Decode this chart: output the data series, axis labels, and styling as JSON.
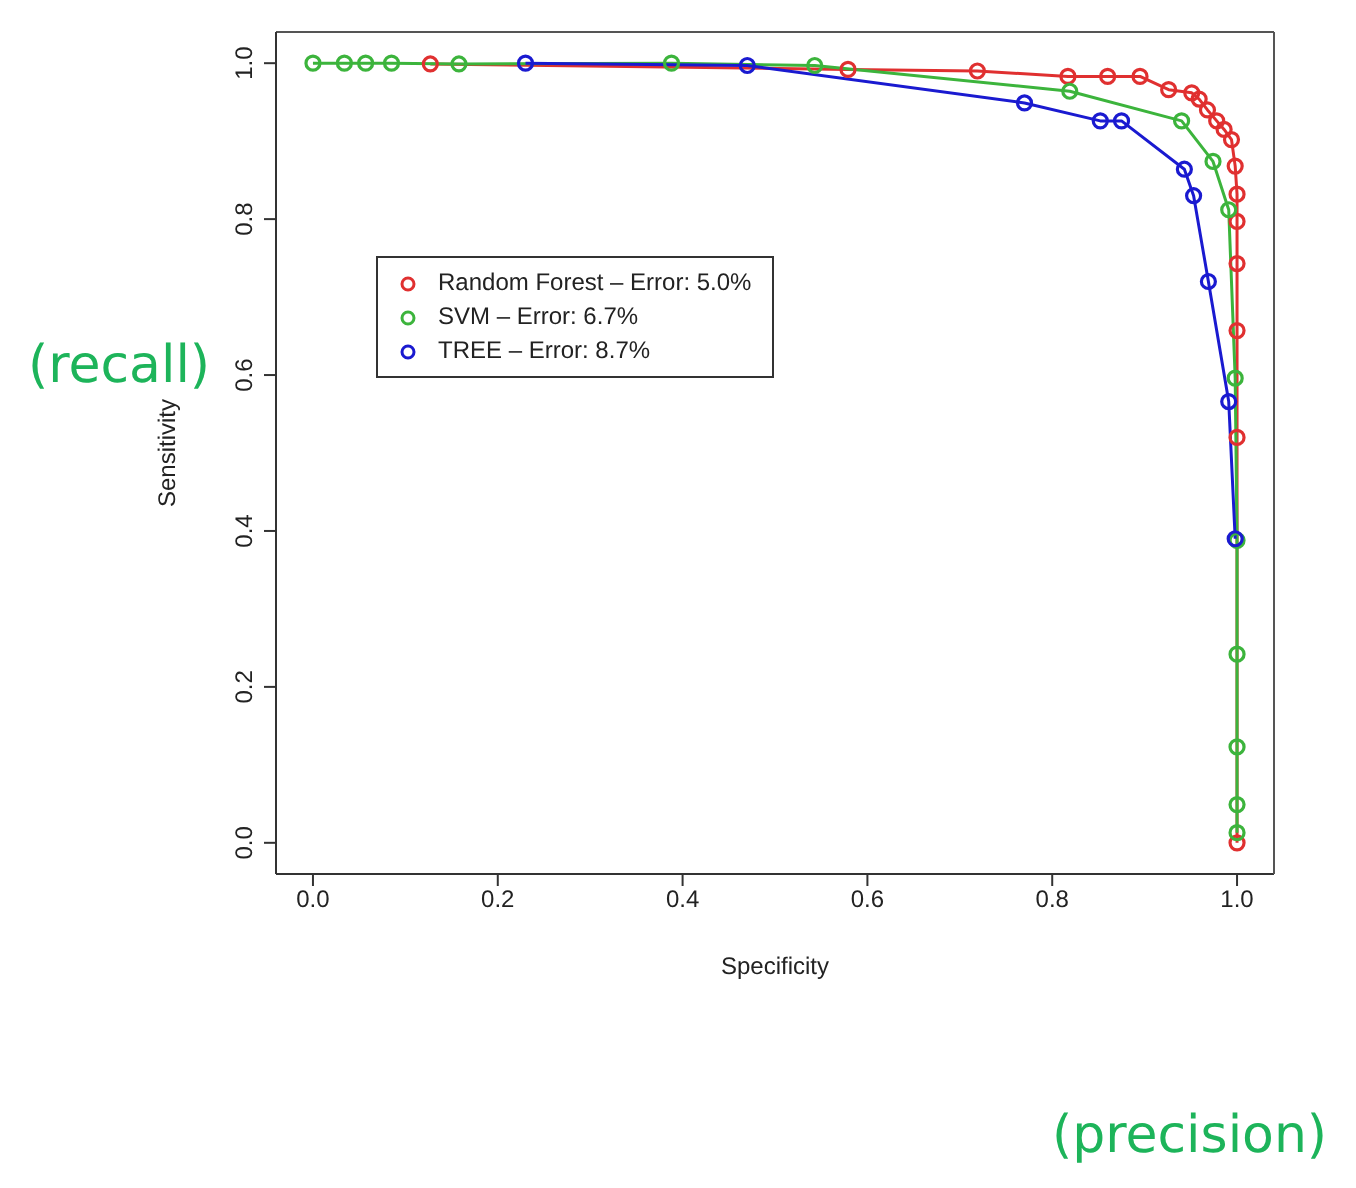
{
  "chart_data": {
    "type": "line",
    "xlabel": "Specificity",
    "ylabel": "Sensitivity",
    "xlim": [
      -0.04,
      1.04
    ],
    "ylim": [
      -0.04,
      1.04
    ],
    "xticks": [
      {
        "value": 0,
        "label": "0.0"
      },
      {
        "value": 0.2,
        "label": "0.2"
      },
      {
        "value": 0.4,
        "label": "0.4"
      },
      {
        "value": 0.6,
        "label": "0.6"
      },
      {
        "value": 0.8,
        "label": "0.8"
      },
      {
        "value": 1,
        "label": "1.0"
      }
    ],
    "yticks": [
      {
        "value": 0,
        "label": "0.0"
      },
      {
        "value": 0.2,
        "label": "0.2"
      },
      {
        "value": 0.4,
        "label": "0.4"
      },
      {
        "value": 0.6,
        "label": "0.6"
      },
      {
        "value": 0.8,
        "label": "0.8"
      },
      {
        "value": 1,
        "label": "1.0"
      }
    ],
    "marker": "circle",
    "line_style": "solid",
    "legend": "top left",
    "annotations": [
      "(recall)",
      "(precision)"
    ],
    "series": [
      {
        "name": "Random Forest – Error: 5.0%",
        "color": "#e03030",
        "x": [
          0.127,
          0.579,
          0.719,
          0.817,
          0.86,
          0.895,
          0.926,
          0.951,
          0.959,
          0.968,
          0.978,
          0.986,
          0.994,
          0.998,
          1,
          1,
          1,
          1,
          1,
          1
        ],
        "values": [
          0.999,
          0.992,
          0.99,
          0.983,
          0.983,
          0.983,
          0.966,
          0.962,
          0.954,
          0.94,
          0.926,
          0.915,
          0.902,
          0.868,
          0.832,
          0.797,
          0.743,
          0.657,
          0.52,
          0
        ]
      },
      {
        "name": "SVM  –  Error: 6.7%",
        "color": "#3cb43c",
        "x": [
          0,
          0.034,
          0.057,
          0.085,
          0.158,
          0.388,
          0.543,
          0.819,
          0.94,
          0.974,
          0.991,
          0.998,
          1,
          1,
          1,
          1,
          1
        ],
        "values": [
          1,
          1,
          1,
          1,
          0.999,
          1,
          0.997,
          0.964,
          0.926,
          0.874,
          0.812,
          0.596,
          0.388,
          0.242,
          0.123,
          0.049,
          0.013
        ]
      },
      {
        "name": "TREE – Error: 8.7%",
        "color": "#1a1ad0",
        "x": [
          0.23,
          0.47,
          0.77,
          0.852,
          0.875,
          0.943,
          0.953,
          0.969,
          0.991,
          0.998
        ],
        "values": [
          1,
          0.997,
          0.949,
          0.926,
          0.926,
          0.864,
          0.83,
          0.72,
          0.566,
          0.39
        ]
      }
    ]
  }
}
